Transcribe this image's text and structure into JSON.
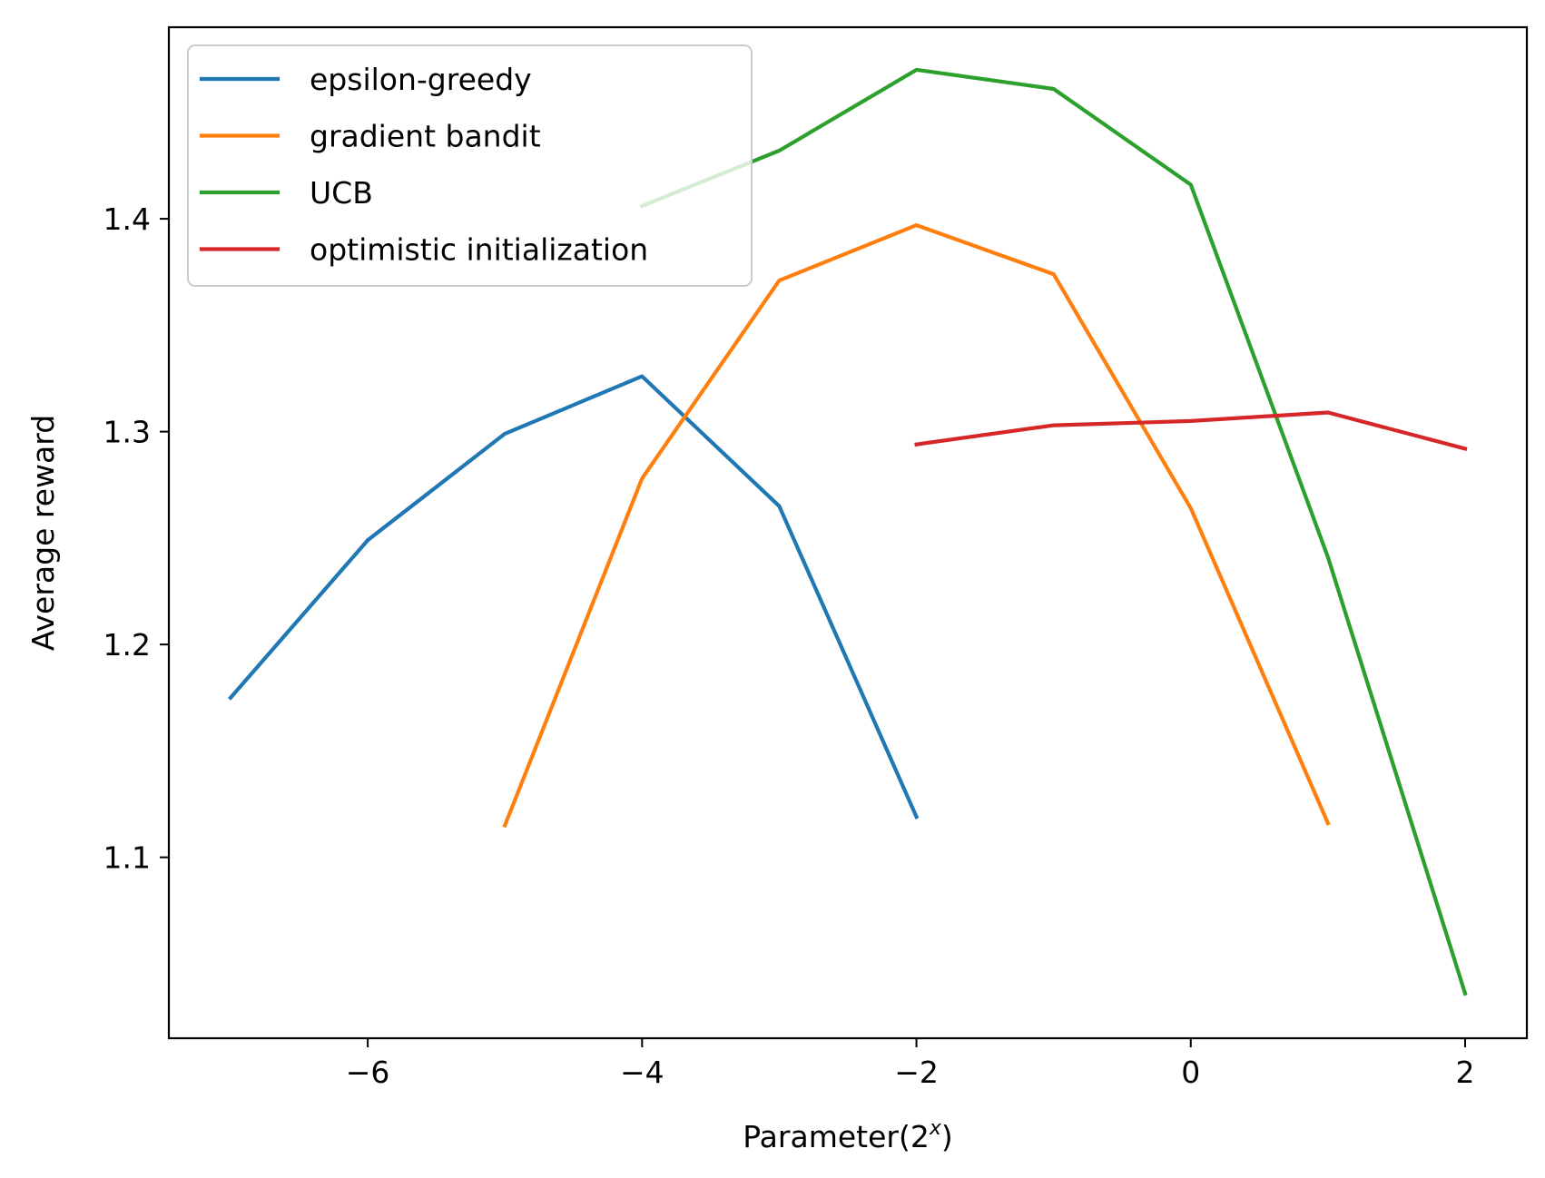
{
  "chart_data": {
    "type": "line",
    "title": "",
    "xlabel_prefix": "Parameter(2",
    "xlabel_sup": "x",
    "xlabel_suffix": ")",
    "ylabel": "Average reward",
    "xlim": [
      -7.45,
      2.45
    ],
    "ylim": [
      1.015,
      1.49
    ],
    "xticks": [
      -6,
      -4,
      -2,
      0,
      2
    ],
    "xtick_labels": [
      "−6",
      "−4",
      "−2",
      "0",
      "2"
    ],
    "yticks": [
      1.1,
      1.2,
      1.3,
      1.4
    ],
    "ytick_labels": [
      "1.1",
      "1.2",
      "1.3",
      "1.4"
    ],
    "grid": false,
    "legend_position": "top-left",
    "series": [
      {
        "name": "epsilon-greedy",
        "color": "#1f77b4",
        "x": [
          -7,
          -6,
          -5,
          -4,
          -3,
          -2
        ],
        "y": [
          1.175,
          1.249,
          1.299,
          1.326,
          1.265,
          1.119
        ]
      },
      {
        "name": "gradient bandit",
        "color": "#ff7f0e",
        "x": [
          -5,
          -4,
          -3,
          -2,
          -1,
          0,
          1
        ],
        "y": [
          1.115,
          1.278,
          1.371,
          1.397,
          1.374,
          1.264,
          1.116
        ]
      },
      {
        "name": "UCB",
        "color": "#2ca02c",
        "x": [
          -4,
          -3,
          -2,
          -1,
          0,
          1,
          2
        ],
        "y": [
          1.406,
          1.432,
          1.47,
          1.461,
          1.416,
          1.241,
          1.036
        ]
      },
      {
        "name": "optimistic initialization",
        "color": "#d62728",
        "x": [
          -2,
          -1,
          0,
          1,
          2
        ],
        "y": [
          1.294,
          1.303,
          1.305,
          1.309,
          1.292
        ]
      }
    ]
  }
}
